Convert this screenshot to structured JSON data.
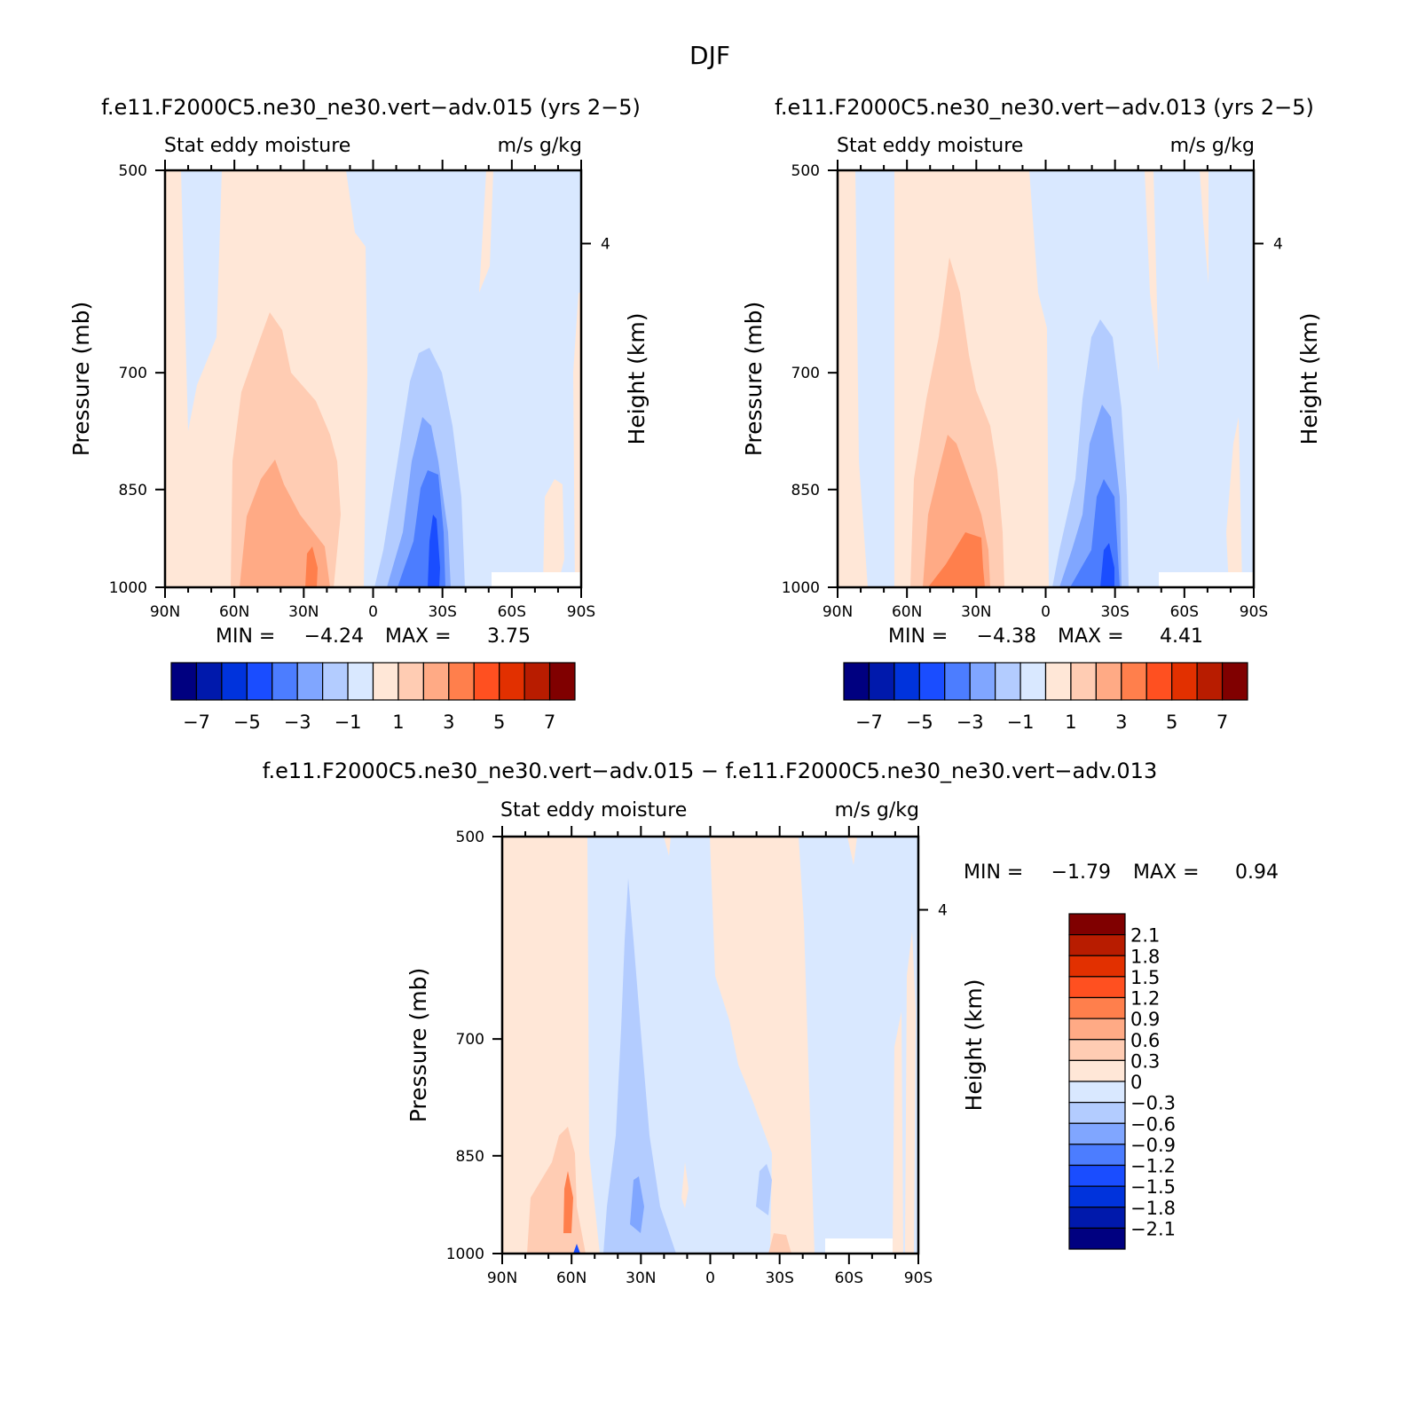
{
  "figure": {
    "title": "DJF",
    "colors": {
      "blue_scale": [
        "#000080",
        "#0019ac",
        "#0033dc",
        "#1a4dff",
        "#4c7dff",
        "#80a6ff",
        "#b3ccff",
        "#d9e8ff"
      ],
      "red_scale": [
        "#ffe7d7",
        "#ffccb3",
        "#ffaa85",
        "#ff7f4c",
        "#ff5020",
        "#e23000",
        "#b81c00",
        "#800000"
      ]
    }
  },
  "chart_data": [
    {
      "id": "p1",
      "type": "contour",
      "title": "f.e11.F2000C5.ne30_ne30.vert−adv.015 (yrs 2−5)",
      "left_label": "Stat eddy moisture",
      "right_label": "m/s g/kg",
      "ylabel": "Pressure (mb)",
      "ylabel_right": "Height (km)",
      "x_ticks": [
        "90N",
        "60N",
        "30N",
        "0",
        "30S",
        "60S",
        "90S"
      ],
      "xlim": [
        90,
        -90
      ],
      "y_ticks": [
        "500",
        "700",
        "850",
        "1000"
      ],
      "ylim": [
        1000,
        500
      ],
      "right_ticks": [
        "4"
      ],
      "min_label": "MIN =",
      "min": "−4.24",
      "max_label": "MAX =",
      "max": "3.75",
      "contour_levels": [
        -7,
        -6,
        -5,
        -4,
        -3,
        -2,
        -1,
        0,
        1,
        2,
        3,
        4,
        5,
        6,
        7
      ],
      "colorbar_labels": [
        "−7",
        "−5",
        "−3",
        "−1",
        "1",
        "3",
        "5",
        "7"
      ]
    },
    {
      "id": "p2",
      "type": "contour",
      "title": "f.e11.F2000C5.ne30_ne30.vert−adv.013 (yrs 2−5)",
      "left_label": "Stat eddy moisture",
      "right_label": "m/s g/kg",
      "ylabel": "Pressure (mb)",
      "ylabel_right": "Height (km)",
      "x_ticks": [
        "90N",
        "60N",
        "30N",
        "0",
        "30S",
        "60S",
        "90S"
      ],
      "xlim": [
        90,
        -90
      ],
      "y_ticks": [
        "500",
        "700",
        "850",
        "1000"
      ],
      "ylim": [
        1000,
        500
      ],
      "right_ticks": [
        "4"
      ],
      "min_label": "MIN =",
      "min": "−4.38",
      "max_label": "MAX =",
      "max": "4.41",
      "contour_levels": [
        -7,
        -6,
        -5,
        -4,
        -3,
        -2,
        -1,
        0,
        1,
        2,
        3,
        4,
        5,
        6,
        7
      ],
      "colorbar_labels": [
        "−7",
        "−5",
        "−3",
        "−1",
        "1",
        "3",
        "5",
        "7"
      ]
    },
    {
      "id": "p3",
      "type": "contour",
      "title": "f.e11.F2000C5.ne30_ne30.vert−adv.015 − f.e11.F2000C5.ne30_ne30.vert−adv.013",
      "left_label": "Stat eddy moisture",
      "right_label": "m/s g/kg",
      "ylabel": "Pressure (mb)",
      "ylabel_right": "Height (km)",
      "x_ticks": [
        "90N",
        "60N",
        "30N",
        "0",
        "30S",
        "60S",
        "90S"
      ],
      "xlim": [
        90,
        -90
      ],
      "y_ticks": [
        "500",
        "700",
        "850",
        "1000"
      ],
      "ylim": [
        1000,
        500
      ],
      "right_ticks": [
        "4"
      ],
      "min_label": "MIN =",
      "min": "−1.79",
      "max_label": "MAX =",
      "max": "0.94",
      "contour_levels": [
        -2.1,
        -1.8,
        -1.5,
        -1.2,
        -0.9,
        -0.6,
        -0.3,
        0,
        0.3,
        0.6,
        0.9,
        1.2,
        1.5,
        1.8,
        2.1
      ],
      "colorbar_labels": [
        "2.1",
        "1.8",
        "1.5",
        "1.2",
        "0.9",
        "0.6",
        "0.3",
        "0",
        "−0.3",
        "−0.6",
        "−0.9",
        "−1.2",
        "−1.5",
        "−1.8",
        "−2.1"
      ]
    }
  ]
}
